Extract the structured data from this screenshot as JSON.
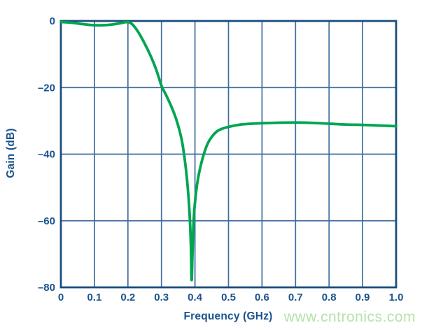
{
  "chart_data": {
    "type": "line",
    "title": "",
    "xlabel": "Frequency (GHz)",
    "ylabel": "Gain (dB)",
    "xlim": [
      0,
      1.0
    ],
    "ylim": [
      -80,
      0
    ],
    "grid": true,
    "legend": false,
    "x_ticks": {
      "values": [
        0,
        0.1,
        0.2,
        0.3,
        0.4,
        0.5,
        0.6,
        0.7,
        0.8,
        0.9,
        1.0
      ],
      "labels": [
        "0",
        "0.1",
        "0.2",
        "0.3",
        "0.4",
        "0.5",
        "0.6",
        "0.7",
        "0.8",
        "0.9",
        "1.0"
      ]
    },
    "y_ticks": {
      "values": [
        0,
        -20,
        -40,
        -60,
        -80
      ],
      "labels": [
        "0",
        "–20",
        "–40",
        "–60",
        "–80"
      ]
    },
    "series": [
      {
        "name": "gain-response",
        "color": "#00a551",
        "points": [
          [
            0.0,
            -0.3
          ],
          [
            0.03,
            -0.5
          ],
          [
            0.06,
            -0.9
          ],
          [
            0.09,
            -1.2
          ],
          [
            0.12,
            -1.3
          ],
          [
            0.15,
            -1.1
          ],
          [
            0.175,
            -0.7
          ],
          [
            0.195,
            -0.35
          ],
          [
            0.205,
            -0.45
          ],
          [
            0.215,
            -1.2
          ],
          [
            0.23,
            -3.2
          ],
          [
            0.25,
            -6.8
          ],
          [
            0.27,
            -11.0
          ],
          [
            0.285,
            -14.8
          ],
          [
            0.3,
            -19.4
          ],
          [
            0.315,
            -22.5
          ],
          [
            0.33,
            -25.8
          ],
          [
            0.345,
            -29.8
          ],
          [
            0.36,
            -35.5
          ],
          [
            0.37,
            -42.0
          ],
          [
            0.378,
            -49.5
          ],
          [
            0.384,
            -58.0
          ],
          [
            0.388,
            -68.0
          ],
          [
            0.39,
            -77.8
          ],
          [
            0.3925,
            -70.0
          ],
          [
            0.396,
            -60.0
          ],
          [
            0.401,
            -53.5
          ],
          [
            0.408,
            -48.0
          ],
          [
            0.417,
            -43.5
          ],
          [
            0.427,
            -39.8
          ],
          [
            0.438,
            -36.8
          ],
          [
            0.45,
            -34.8
          ],
          [
            0.465,
            -33.2
          ],
          [
            0.48,
            -32.4
          ],
          [
            0.5,
            -31.8
          ],
          [
            0.53,
            -31.2
          ],
          [
            0.56,
            -30.9
          ],
          [
            0.6,
            -30.7
          ],
          [
            0.65,
            -30.55
          ],
          [
            0.7,
            -30.5
          ],
          [
            0.75,
            -30.6
          ],
          [
            0.8,
            -30.85
          ],
          [
            0.85,
            -31.1
          ],
          [
            0.9,
            -31.2
          ],
          [
            0.95,
            -31.4
          ],
          [
            1.0,
            -31.6
          ]
        ]
      }
    ],
    "annotations": {
      "notch_frequency_ghz": 0.39,
      "notch_depth_db": -77.8,
      "stopband_plateau_db": -30.5
    }
  },
  "watermark": {
    "text": "www.cntronics.com",
    "color": "#b6e2ab"
  },
  "colors": {
    "curve": "#00a551",
    "grid": "#3f6d9e",
    "border": "#1b4e7a",
    "labels": "#1b538c",
    "background": "#ffffff"
  }
}
